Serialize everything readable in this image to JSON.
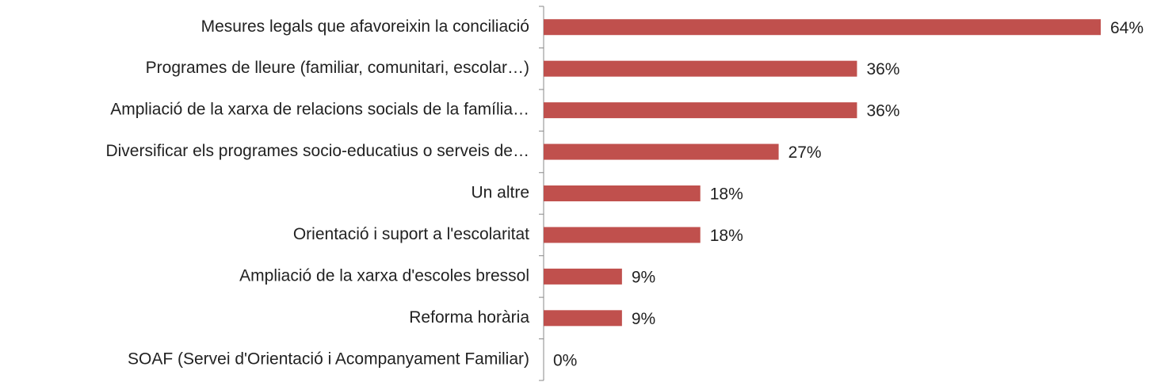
{
  "chart_data": {
    "type": "bar",
    "orientation": "horizontal",
    "categories": [
      "Mesures legals que afavoreixin la conciliació",
      "Programes de lleure (familiar, comunitari, escolar…)",
      "Ampliació de la xarxa de relacions socials de la família…",
      "Diversificar els programes socio-educatius o serveis de…",
      "Un altre",
      "Orientació i suport a l'escolaritat",
      "Ampliació de la xarxa d'escoles bressol",
      "Reforma horària",
      "SOAF (Servei d'Orientació i Acompanyament Familiar)"
    ],
    "values": [
      64,
      36,
      36,
      27,
      18,
      18,
      9,
      9,
      0
    ],
    "value_labels": [
      "64%",
      "36%",
      "36%",
      "27%",
      "18%",
      "18%",
      "9%",
      "9%",
      "0%"
    ],
    "color": "#c0504d"
  }
}
